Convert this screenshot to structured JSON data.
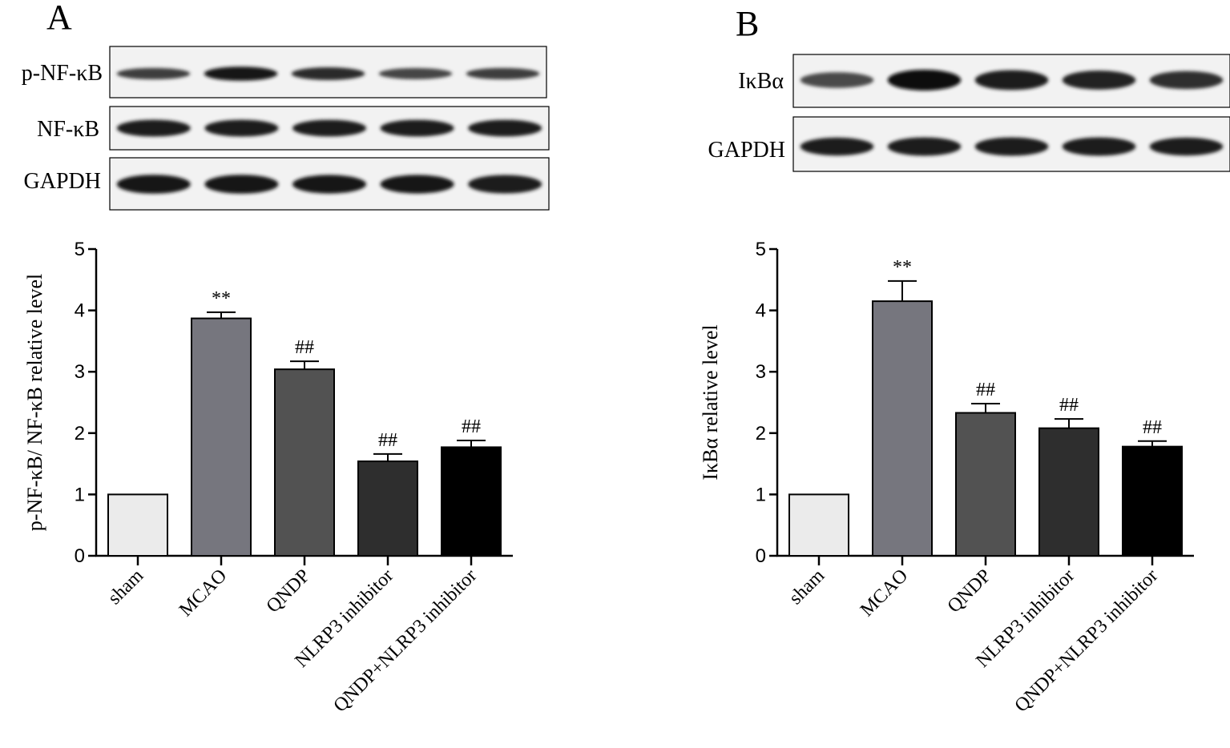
{
  "panels": [
    {
      "letter": "A",
      "blot_labels": [
        "p-NF-κB",
        "NF-κB",
        "GAPDH"
      ],
      "band_intensity": [
        [
          0.55,
          0.95,
          0.75,
          0.5,
          0.55
        ],
        [
          0.9,
          0.9,
          0.88,
          0.88,
          0.88
        ],
        [
          0.95,
          0.95,
          0.92,
          0.92,
          0.9
        ]
      ]
    },
    {
      "letter": "B",
      "blot_labels": [
        "IκBα",
        "GAPDH"
      ],
      "band_intensity": [
        [
          0.45,
          1.0,
          0.9,
          0.8,
          0.7
        ],
        [
          0.85,
          0.9,
          0.9,
          0.9,
          0.85
        ]
      ]
    }
  ],
  "chart_data": [
    {
      "type": "bar",
      "panel": "A",
      "categories": [
        "sham",
        "MCAO",
        "QNDP",
        "NLRP3 inhibitor",
        "QNDP+NLRP3 inhibitor"
      ],
      "values": [
        1.0,
        3.87,
        3.04,
        1.54,
        1.77
      ],
      "errors": [
        0,
        0.1,
        0.13,
        0.12,
        0.11
      ],
      "annotations": [
        "",
        "**",
        "##",
        "##",
        "##"
      ],
      "bar_colors": [
        "#ebebeb",
        "#76767e",
        "#525252",
        "#2e2e2e",
        "#000000"
      ],
      "ylabel": "p-NF-κB/ NF-κB relative level",
      "xlabel": "",
      "ylim": [
        0,
        5
      ],
      "yticks": [
        0,
        1,
        2,
        3,
        4,
        5
      ],
      "grid": false
    },
    {
      "type": "bar",
      "panel": "B",
      "categories": [
        "sham",
        "MCAO",
        "QNDP",
        "NLRP3 inhibitor",
        "QNDP+NLRP3 inhibitor"
      ],
      "values": [
        1.0,
        4.15,
        2.33,
        2.08,
        1.78
      ],
      "errors": [
        0,
        0.33,
        0.15,
        0.15,
        0.09
      ],
      "annotations": [
        "",
        "**",
        "##",
        "##",
        "##"
      ],
      "bar_colors": [
        "#ebebeb",
        "#76767e",
        "#525252",
        "#2e2e2e",
        "#000000"
      ],
      "ylabel": "IκBα relative level",
      "xlabel": "",
      "ylim": [
        0,
        5
      ],
      "yticks": [
        0,
        1,
        2,
        3,
        4,
        5
      ],
      "grid": false
    }
  ]
}
